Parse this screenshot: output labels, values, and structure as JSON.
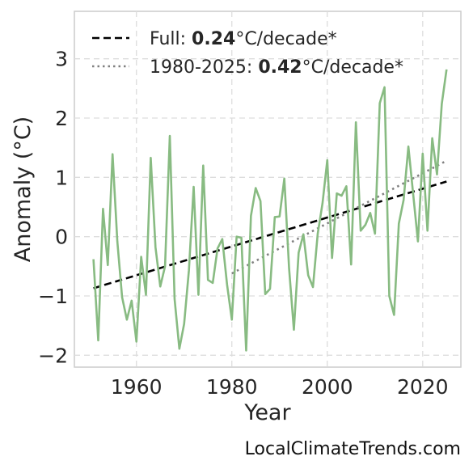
{
  "chart_data": {
    "type": "line",
    "xlabel": "Year",
    "ylabel": "Anomaly (°C)",
    "xlim": [
      1947,
      2028
    ],
    "ylim": [
      -2.2,
      3.8
    ],
    "x_ticks": [
      1960,
      1980,
      2000,
      2020
    ],
    "y_ticks": [
      -2,
      -1,
      0,
      1,
      2,
      3
    ],
    "y_tick_labels": [
      "−2",
      "−1",
      "0",
      "1",
      "2",
      "3"
    ],
    "grid": true,
    "legend_position": "top-left",
    "series": [
      {
        "color": "#88bb82",
        "x": [
          1951,
          1952,
          1953,
          1954,
          1955,
          1956,
          1957,
          1958,
          1959,
          1960,
          1961,
          1962,
          1963,
          1964,
          1965,
          1966,
          1967,
          1968,
          1969,
          1970,
          1971,
          1972,
          1973,
          1974,
          1975,
          1976,
          1977,
          1978,
          1979,
          1980,
          1981,
          1982,
          1983,
          1984,
          1985,
          1986,
          1987,
          1988,
          1989,
          1990,
          1991,
          1992,
          1993,
          1994,
          1995,
          1996,
          1997,
          1998,
          1999,
          2000,
          2001,
          2002,
          2003,
          2004,
          2005,
          2006,
          2007,
          2008,
          2009,
          2010,
          2011,
          2012,
          2013,
          2014,
          2015,
          2016,
          2017,
          2018,
          2019,
          2020,
          2021,
          2022,
          2023,
          2024,
          2025
        ],
        "values": [
          -0.38,
          -1.75,
          0.47,
          -0.48,
          1.39,
          -0.08,
          -1.02,
          -1.4,
          -1.08,
          -1.77,
          -0.34,
          -0.98,
          1.33,
          -0.18,
          -0.84,
          -0.5,
          1.7,
          -1.05,
          -1.89,
          -1.47,
          -0.57,
          0.84,
          -0.98,
          1.2,
          -0.73,
          -0.78,
          -0.2,
          -0.04,
          -0.81,
          -1.4,
          0.0,
          -0.02,
          -1.92,
          0.35,
          0.82,
          0.6,
          -0.97,
          -0.88,
          0.33,
          0.34,
          0.98,
          -0.54,
          -1.57,
          -0.27,
          0.04,
          -0.65,
          -0.85,
          0.05,
          0.56,
          1.29,
          -0.36,
          0.73,
          0.69,
          0.85,
          -0.47,
          1.93,
          0.1,
          0.2,
          0.4,
          0.05,
          2.25,
          2.52,
          -1.0,
          -1.32,
          0.22,
          0.62,
          1.52,
          0.72,
          -0.08,
          1.4,
          0.1,
          1.66,
          1.05,
          2.24,
          2.82
        ]
      }
    ],
    "trends": [
      {
        "name_prefix": "Full: ",
        "rate": "0.24",
        "name_suffix": "°C/decade*",
        "style": "dashed",
        "color": "#000000",
        "x": [
          1951,
          2025
        ],
        "y": [
          -0.87,
          0.93
        ]
      },
      {
        "name_prefix": "1980-2025: ",
        "rate": "0.42",
        "name_suffix": "°C/decade*",
        "style": "dotted",
        "color": "#808080",
        "x": [
          1980,
          2025
        ],
        "y": [
          -0.62,
          1.28
        ]
      }
    ]
  },
  "watermark": "LocalClimateTrends.com"
}
